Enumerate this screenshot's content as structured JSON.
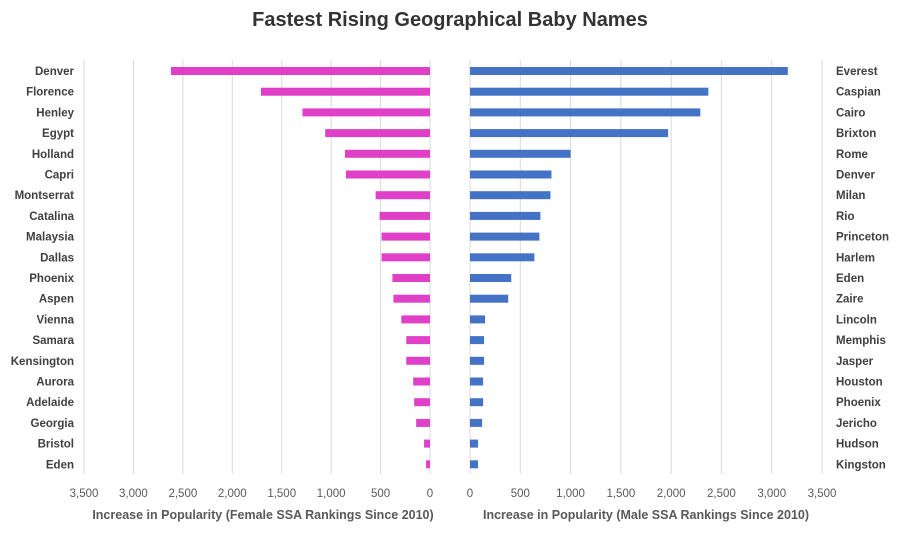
{
  "chart_data": {
    "type": "bar",
    "title": "Fastest Rising Geographical Baby Names",
    "panels": [
      {
        "id": "female",
        "orientation": "horizontal",
        "direction": "reversed",
        "color": "#e040c8",
        "xlabel": "Increase in Popularity (Female SSA Rankings Since 2010)",
        "xlim": [
          0,
          3500
        ],
        "xticks": [
          0,
          500,
          1000,
          1500,
          2000,
          2500,
          3000,
          3500
        ],
        "xtick_labels": [
          "0",
          "500",
          "1,000",
          "1,500",
          "2,000",
          "2,500",
          "3,000",
          "3,500"
        ],
        "grid": true,
        "categories": [
          "Denver",
          "Florence",
          "Henley",
          "Egypt",
          "Holland",
          "Capri",
          "Montserrat",
          "Catalina",
          "Malaysia",
          "Dallas",
          "Phoenix",
          "Aspen",
          "Vienna",
          "Samara",
          "Kensington",
          "Aurora",
          "Adelaide",
          "Georgia",
          "Bristol",
          "Eden"
        ],
        "values": [
          2620,
          1710,
          1290,
          1060,
          860,
          850,
          550,
          510,
          490,
          490,
          380,
          370,
          290,
          240,
          240,
          170,
          160,
          140,
          60,
          40
        ]
      },
      {
        "id": "male",
        "orientation": "horizontal",
        "direction": "normal",
        "color": "#4472c4",
        "xlabel": "Increase in Popularity (Male SSA Rankings Since 2010)",
        "xlim": [
          0,
          3500
        ],
        "xticks": [
          0,
          500,
          1000,
          1500,
          2000,
          2500,
          3000,
          3500
        ],
        "xtick_labels": [
          "0",
          "500",
          "1,000",
          "1,500",
          "2,000",
          "2,500",
          "3,000",
          "3,500"
        ],
        "grid": true,
        "categories": [
          "Everest",
          "Caspian",
          "Cairo",
          "Brixton",
          "Rome",
          "Denver",
          "Milan",
          "Rio",
          "Princeton",
          "Harlem",
          "Eden",
          "Zaire",
          "Lincoln",
          "Memphis",
          "Jasper",
          "Houston",
          "Phoenix",
          "Jericho",
          "Hudson",
          "Kingston"
        ],
        "values": [
          3160,
          2370,
          2290,
          1970,
          1000,
          810,
          800,
          700,
          690,
          640,
          410,
          380,
          150,
          140,
          140,
          130,
          130,
          120,
          80,
          80
        ]
      }
    ]
  }
}
